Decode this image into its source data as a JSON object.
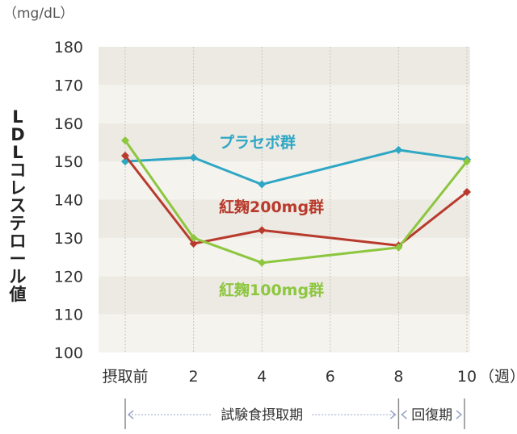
{
  "chart_data": {
    "type": "line",
    "unit_label": "（mg/dL）",
    "ylabel": "LDLコレステロール値",
    "ylim": [
      100,
      180
    ],
    "yticks": [
      100,
      110,
      120,
      130,
      140,
      150,
      160,
      170,
      180
    ],
    "x": [
      0,
      2,
      4,
      6,
      8,
      10
    ],
    "x_tick_labels": [
      "摂取前",
      "2",
      "4",
      "6",
      "8",
      "10"
    ],
    "x_unit": "（週）",
    "grid": "vertical dashed lines, alternating horizontal bands",
    "series": [
      {
        "name": "プラセボ群",
        "color": "#2ea7c4",
        "x": [
          0,
          2,
          4,
          8,
          10
        ],
        "values": [
          150,
          151,
          144,
          153,
          150.5
        ]
      },
      {
        "name": "紅麹200mg群",
        "color": "#b83a2c",
        "x": [
          0,
          2,
          4,
          8,
          10
        ],
        "values": [
          151.5,
          128.5,
          132,
          128,
          142
        ]
      },
      {
        "name": "紅麹100mg群",
        "color": "#8dc63f",
        "x": [
          0,
          2,
          4,
          8,
          10
        ],
        "values": [
          155.5,
          130,
          123.5,
          127.5,
          150
        ]
      }
    ],
    "periods": [
      {
        "label": "試験食摂取期",
        "from": 0,
        "to": 8
      },
      {
        "label": "回復期",
        "from": 8,
        "to": 10
      }
    ]
  }
}
